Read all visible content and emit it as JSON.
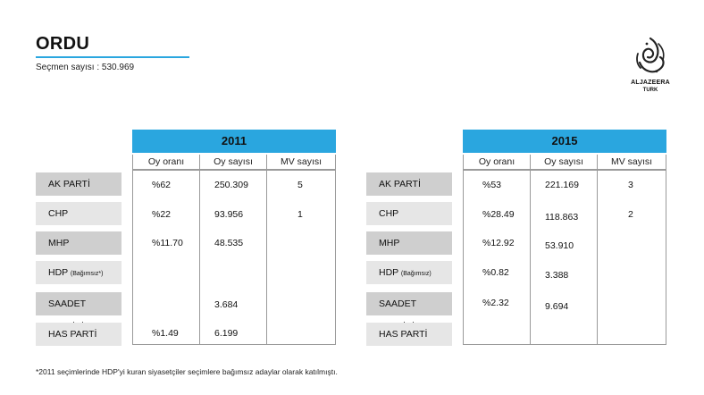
{
  "title": "ORDU",
  "subtitle": "Seçmen sayısı : 530.969",
  "logo": {
    "line1": "ALJAZEERA",
    "line2": "TURK",
    "icon": "aljazeera-calligraphy-logo"
  },
  "columns": [
    "Oy oranı",
    "Oy sayısı",
    "MV sayısı"
  ],
  "tables": [
    {
      "year": "2011",
      "parties": [
        {
          "name": "AK PARTİ",
          "note": "",
          "oy_orani": "%62",
          "oy_sayisi": "250.309",
          "mv": "5"
        },
        {
          "name": "CHP",
          "note": "",
          "oy_orani": "%22",
          "oy_sayisi": "93.956",
          "mv": "1"
        },
        {
          "name": "MHP",
          "note": "",
          "oy_orani": "%11.70",
          "oy_sayisi": "48.535",
          "mv": ""
        },
        {
          "name": "HDP",
          "note": "(Bağımsız*)",
          "oy_orani": "",
          "oy_sayisi": "",
          "mv": ""
        },
        {
          "name": "SAADET PARTİSİ",
          "note": "",
          "oy_orani": "",
          "oy_sayisi": "3.684",
          "mv": ""
        },
        {
          "name": "HAS PARTİ",
          "note": "",
          "oy_orani": "%1.49",
          "oy_sayisi": "6.199",
          "mv": ""
        }
      ]
    },
    {
      "year": "2015",
      "parties": [
        {
          "name": "AK PARTİ",
          "note": "",
          "oy_orani": "%53",
          "oy_sayisi": "221.169",
          "mv": "3"
        },
        {
          "name": "CHP",
          "note": "",
          "oy_orani": "%28.49",
          "oy_sayisi": "118.863",
          "mv": "2"
        },
        {
          "name": "MHP",
          "note": "",
          "oy_orani": "%12.92",
          "oy_sayisi": "53.910",
          "mv": ""
        },
        {
          "name": "HDP",
          "note": "(Bağımsız)",
          "oy_orani": "%0.82",
          "oy_sayisi": "3.388",
          "mv": ""
        },
        {
          "name": "SAADET PARTİSİ",
          "note": "",
          "oy_orani": "%2.32",
          "oy_sayisi": "9.694",
          "mv": ""
        },
        {
          "name": "HAS PARTİ",
          "note": "",
          "oy_orani": "",
          "oy_sayisi": "",
          "mv": ""
        }
      ]
    }
  ],
  "footnote": "*2011 seçimlerinde HDP'yi kuran siyasetçiler seçimlere bağımsız adaylar olarak katılmıştı.",
  "colors": {
    "accent": "#2aa6df",
    "party_dark": "#cfcfcf",
    "party_light": "#e6e6e6"
  }
}
